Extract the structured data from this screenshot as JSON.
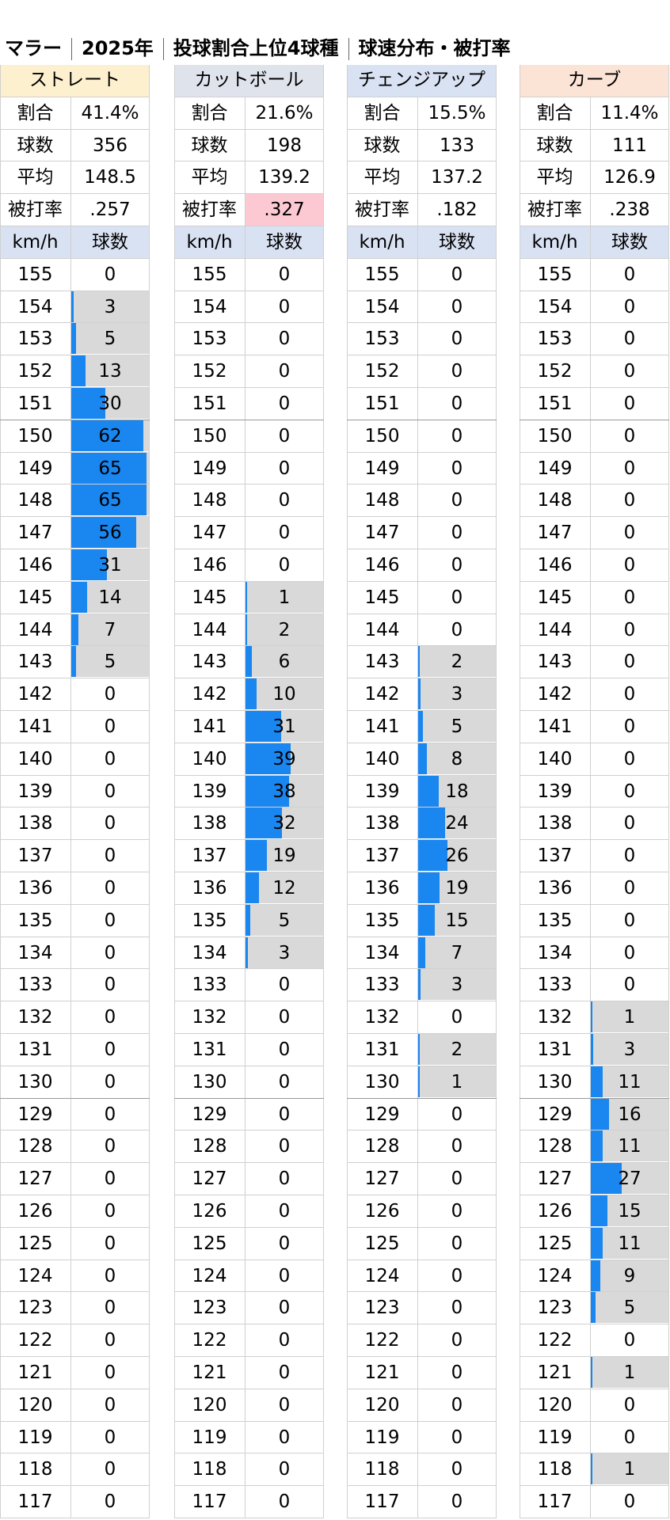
{
  "title": {
    "pitcher": "マラー",
    "year": "2025年",
    "subject": "投球割合上位4球種",
    "desc": "球速分布・被打率"
  },
  "colors": {
    "bar": "#1a86f0",
    "bar_background": "#d9d9d9",
    "highlight": "#fcc9d3",
    "header_fills": [
      "#fdf0cf",
      "#dfe3ec",
      "#d9e2f3",
      "#fbe3d6"
    ],
    "subheader_fill": "#d9e2f3"
  },
  "labels": {
    "ratio": "割合",
    "count": "球数",
    "avg": "平均",
    "baa": "被打率",
    "kmh": "km/h",
    "pitches": "球数"
  },
  "chart_data": {
    "type": "bar",
    "speeds": [
      155,
      154,
      153,
      152,
      151,
      150,
      149,
      148,
      147,
      146,
      145,
      144,
      143,
      142,
      141,
      140,
      139,
      138,
      137,
      136,
      135,
      134,
      133,
      132,
      131,
      130,
      129,
      128,
      127,
      126,
      125,
      124,
      123,
      122,
      121,
      120,
      119,
      118,
      117
    ],
    "xlabel": "km/h",
    "ylabel": "球数",
    "series": [
      {
        "name": "ストレート",
        "ratio": "41.4%",
        "count": "356",
        "avg": "148.5",
        "baa": ".257",
        "baa_highlight": false,
        "values": [
          0,
          3,
          5,
          13,
          30,
          62,
          65,
          65,
          56,
          31,
          14,
          7,
          5,
          0,
          0,
          0,
          0,
          0,
          0,
          0,
          0,
          0,
          0,
          0,
          0,
          0,
          0,
          0,
          0,
          0,
          0,
          0,
          0,
          0,
          0,
          0,
          0,
          0,
          0
        ]
      },
      {
        "name": "カットボール",
        "ratio": "21.6%",
        "count": "198",
        "avg": "139.2",
        "baa": ".327",
        "baa_highlight": true,
        "values": [
          0,
          0,
          0,
          0,
          0,
          0,
          0,
          0,
          0,
          0,
          1,
          2,
          6,
          10,
          31,
          39,
          38,
          32,
          19,
          12,
          5,
          3,
          0,
          0,
          0,
          0,
          0,
          0,
          0,
          0,
          0,
          0,
          0,
          0,
          0,
          0,
          0,
          0,
          0
        ]
      },
      {
        "name": "チェンジアップ",
        "ratio": "15.5%",
        "count": "133",
        "avg": "137.2",
        "baa": ".182",
        "baa_highlight": false,
        "values": [
          0,
          0,
          0,
          0,
          0,
          0,
          0,
          0,
          0,
          0,
          0,
          0,
          2,
          3,
          5,
          8,
          18,
          24,
          26,
          19,
          15,
          7,
          3,
          0,
          2,
          1,
          0,
          0,
          0,
          0,
          0,
          0,
          0,
          0,
          0,
          0,
          0,
          0,
          0
        ]
      },
      {
        "name": "カーブ",
        "ratio": "11.4%",
        "count": "111",
        "avg": "126.9",
        "baa": ".238",
        "baa_highlight": false,
        "values": [
          0,
          0,
          0,
          0,
          0,
          0,
          0,
          0,
          0,
          0,
          0,
          0,
          0,
          0,
          0,
          0,
          0,
          0,
          0,
          0,
          0,
          0,
          0,
          1,
          3,
          11,
          16,
          11,
          27,
          15,
          11,
          9,
          5,
          0,
          1,
          0,
          0,
          1,
          0
        ]
      }
    ]
  }
}
